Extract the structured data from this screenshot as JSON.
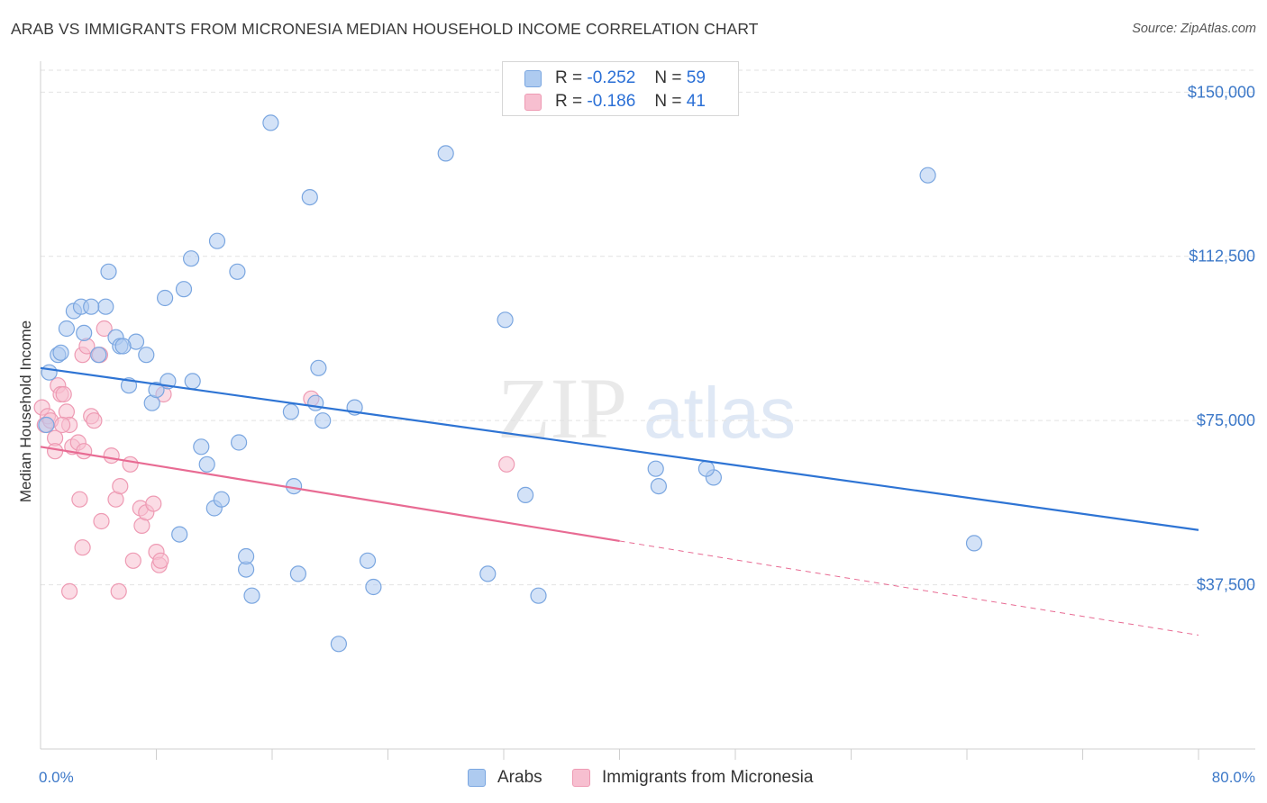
{
  "title": "ARAB VS IMMIGRANTS FROM MICRONESIA MEDIAN HOUSEHOLD INCOME CORRELATION CHART",
  "source": "Source: ZipAtlas.com",
  "watermark": {
    "zip": "ZIP",
    "atlas": "atlas"
  },
  "legend_top": [
    {
      "r_label": "R =",
      "r_value": "-0.252",
      "n_label": "N =",
      "n_value": "59"
    },
    {
      "r_label": "R =",
      "r_value": "-0.186",
      "n_label": "N =",
      "n_value": "41"
    }
  ],
  "legend_bottom": [
    {
      "label": "Arabs"
    },
    {
      "label": "Immigrants from Micronesia"
    }
  ],
  "colors": {
    "arabs_fill": "#aecbf0",
    "arabs_stroke": "#7aa6e0",
    "arabs_line": "#2e74d4",
    "micronesia_fill": "#f7bfd0",
    "micronesia_stroke": "#ee9ab3",
    "micronesia_line": "#e86b93",
    "tick_text": "#3c78c8",
    "grid": "#e2e2e2"
  },
  "chart_data": {
    "type": "scatter",
    "title": "ARAB VS IMMIGRANTS FROM MICRONESIA MEDIAN HOUSEHOLD INCOME CORRELATION CHART",
    "xlabel": "",
    "ylabel": "Median Household Income",
    "xlim": [
      0,
      80
    ],
    "ylim": [
      0,
      155000
    ],
    "x_tick_labels": [
      "0.0%",
      "80.0%"
    ],
    "y_ticks": [
      37500,
      75000,
      112500,
      150000
    ],
    "y_tick_labels": [
      "$37,500",
      "$75,000",
      "$112,500",
      "$150,000"
    ],
    "grid": true,
    "legend_position": "top-center",
    "series": [
      {
        "name": "Arabs",
        "r": -0.252,
        "n": 59,
        "trend": {
          "x": [
            0,
            80
          ],
          "y": [
            87000,
            50000
          ],
          "dashed_from": null
        },
        "points": [
          [
            0.4,
            74000
          ],
          [
            0.6,
            86000
          ],
          [
            1.2,
            90000
          ],
          [
            1.4,
            90500
          ],
          [
            2.3,
            100000
          ],
          [
            1.8,
            96000
          ],
          [
            2.8,
            101000
          ],
          [
            3.0,
            95000
          ],
          [
            4.5,
            101000
          ],
          [
            3.5,
            101000
          ],
          [
            4.7,
            109000
          ],
          [
            4.0,
            90000
          ],
          [
            5.2,
            94000
          ],
          [
            5.5,
            92000
          ],
          [
            6.6,
            93000
          ],
          [
            7.3,
            90000
          ],
          [
            6.1,
            83000
          ],
          [
            7.7,
            79000
          ],
          [
            8.0,
            82000
          ],
          [
            8.8,
            84000
          ],
          [
            8.6,
            103000
          ],
          [
            9.9,
            105000
          ],
          [
            10.4,
            112000
          ],
          [
            12.2,
            116000
          ],
          [
            13.6,
            109000
          ],
          [
            10.5,
            84000
          ],
          [
            11.1,
            69000
          ],
          [
            11.5,
            65000
          ],
          [
            12.0,
            55000
          ],
          [
            12.5,
            57000
          ],
          [
            13.7,
            70000
          ],
          [
            15.9,
            143000
          ],
          [
            18.6,
            126000
          ],
          [
            17.3,
            77000
          ],
          [
            17.5,
            60000
          ],
          [
            19.0,
            79000
          ],
          [
            19.5,
            75000
          ],
          [
            19.2,
            87000
          ],
          [
            21.7,
            78000
          ],
          [
            14.2,
            41000
          ],
          [
            14.2,
            44000
          ],
          [
            14.6,
            35000
          ],
          [
            17.8,
            40000
          ],
          [
            22.6,
            43000
          ],
          [
            23.0,
            37000
          ],
          [
            20.6,
            24000
          ],
          [
            28.0,
            136000
          ],
          [
            30.9,
            40000
          ],
          [
            32.1,
            98000
          ],
          [
            33.5,
            58000
          ],
          [
            34.4,
            35000
          ],
          [
            42.5,
            64000
          ],
          [
            42.7,
            60000
          ],
          [
            46.5,
            62000
          ],
          [
            46.0,
            64000
          ],
          [
            61.3,
            131000
          ],
          [
            64.5,
            47000
          ],
          [
            9.6,
            49000
          ],
          [
            5.7,
            92000
          ]
        ]
      },
      {
        "name": "Immigrants from Micronesia",
        "r": -0.186,
        "n": 41,
        "trend": {
          "x": [
            0,
            80
          ],
          "y": [
            69000,
            26000
          ],
          "dashed_from": 40
        },
        "points": [
          [
            0.1,
            78000
          ],
          [
            0.3,
            74000
          ],
          [
            0.5,
            76000
          ],
          [
            0.7,
            75000
          ],
          [
            1.0,
            71000
          ],
          [
            1.2,
            83000
          ],
          [
            1.4,
            81000
          ],
          [
            1.6,
            81000
          ],
          [
            1.8,
            77000
          ],
          [
            2.0,
            74000
          ],
          [
            2.2,
            69000
          ],
          [
            2.6,
            70000
          ],
          [
            2.9,
            90000
          ],
          [
            3.2,
            92000
          ],
          [
            3.5,
            76000
          ],
          [
            3.7,
            75000
          ],
          [
            4.1,
            90000
          ],
          [
            4.4,
            96000
          ],
          [
            3.0,
            68000
          ],
          [
            4.9,
            67000
          ],
          [
            5.2,
            57000
          ],
          [
            5.5,
            60000
          ],
          [
            6.2,
            65000
          ],
          [
            6.9,
            55000
          ],
          [
            7.0,
            51000
          ],
          [
            7.3,
            54000
          ],
          [
            7.8,
            56000
          ],
          [
            8.0,
            45000
          ],
          [
            8.2,
            42000
          ],
          [
            8.3,
            43000
          ],
          [
            8.5,
            81000
          ],
          [
            1.0,
            68000
          ],
          [
            2.7,
            57000
          ],
          [
            2.9,
            46000
          ],
          [
            4.2,
            52000
          ],
          [
            5.4,
            36000
          ],
          [
            6.4,
            43000
          ],
          [
            2.0,
            36000
          ],
          [
            18.7,
            80000
          ],
          [
            32.2,
            65000
          ],
          [
            1.5,
            74000
          ]
        ]
      }
    ]
  }
}
